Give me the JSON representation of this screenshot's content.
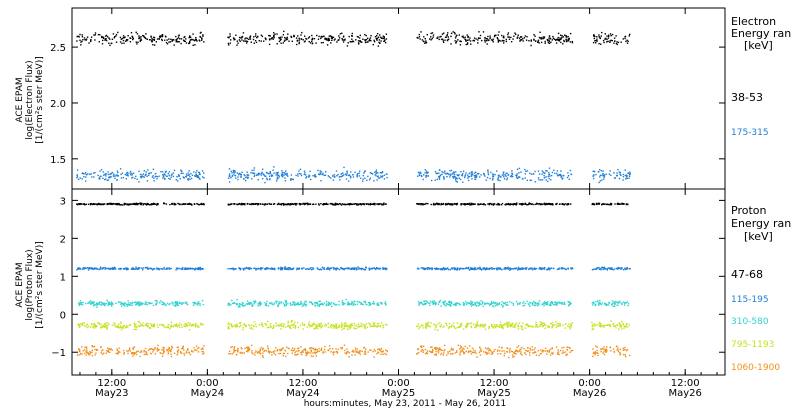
{
  "x_title": "hours:minutes, May 23, 2011 - May 26, 2011",
  "time_ticks": [
    {
      "label_time": "12:00",
      "label_date": "May23",
      "hours": 12
    },
    {
      "label_time": "0:00",
      "label_date": "May24",
      "hours": 24
    },
    {
      "label_time": "12:00",
      "label_date": "May24",
      "hours": 36
    },
    {
      "label_time": "0:00",
      "label_date": "May25",
      "hours": 48
    },
    {
      "label_time": "12:00",
      "label_date": "May25",
      "hours": 60
    },
    {
      "label_time": "0:00",
      "label_date": "May26",
      "hours": 72
    },
    {
      "label_time": "12:00",
      "label_date": "May26",
      "hours": 84
    }
  ],
  "chart_data": [
    {
      "type": "scatter",
      "panel": "electron",
      "ylabel_lines": [
        "ACE EPAM",
        "log(Electron Flux)",
        "[1/(cm²s ster MeV)]"
      ],
      "legend_title_lines": [
        "Electron",
        "Energy ran",
        "[keV]"
      ],
      "xlim_hours": [
        7,
        89
      ],
      "ylim": [
        1.23,
        2.85
      ],
      "yticks": [
        1.5,
        2.0,
        2.5
      ],
      "ytick_labels": [
        "1.5",
        "2.0",
        "2.5"
      ],
      "data_gaps_hours": [
        [
          24,
          26
        ],
        [
          46,
          50
        ],
        [
          70,
          72
        ]
      ],
      "data_windows_hours": [
        [
          7.5,
          23.5
        ],
        [
          26.5,
          46.5
        ],
        [
          50.2,
          69.8
        ],
        [
          72.2,
          77.0
        ]
      ],
      "series": [
        {
          "name": "38-53",
          "color": "#000000",
          "mean": 2.58,
          "spread": 0.05
        },
        {
          "name": "175-315",
          "color": "#1f7fd6",
          "mean": 1.36,
          "spread": 0.05
        }
      ]
    },
    {
      "type": "scatter",
      "panel": "proton",
      "ylabel_lines": [
        "ACE EPAM",
        "log(Proton Flux)",
        "[1/(cm²s ster MeV)]"
      ],
      "legend_title_lines": [
        "Proton",
        "Energy ran",
        "[keV]"
      ],
      "xlim_hours": [
        7,
        89
      ],
      "ylim": [
        -1.6,
        3.3
      ],
      "yticks": [
        -1,
        0,
        1,
        2,
        3
      ],
      "ytick_labels": [
        "−1",
        "0",
        "1",
        "2",
        "3"
      ],
      "data_gaps_hours": [
        [
          24,
          26
        ],
        [
          46,
          50
        ],
        [
          70,
          72
        ]
      ],
      "data_windows_hours": [
        [
          7.5,
          23.5
        ],
        [
          26.5,
          46.5
        ],
        [
          50.2,
          69.8
        ],
        [
          72.2,
          77.0
        ]
      ],
      "series": [
        {
          "name": "47-68",
          "color": "#000000",
          "mean": 2.92,
          "spread": 0.02
        },
        {
          "name": "115-195",
          "color": "#1f7fd6",
          "mean": 1.22,
          "spread": 0.03
        },
        {
          "name": "310-580",
          "color": "#2fd3cf",
          "mean": 0.3,
          "spread": 0.07
        },
        {
          "name": "795-1193",
          "color": "#c9e01e",
          "mean": -0.28,
          "spread": 0.09
        },
        {
          "name": "1060-1900",
          "color": "#f0901a",
          "mean": -0.95,
          "spread": 0.13
        }
      ]
    }
  ]
}
